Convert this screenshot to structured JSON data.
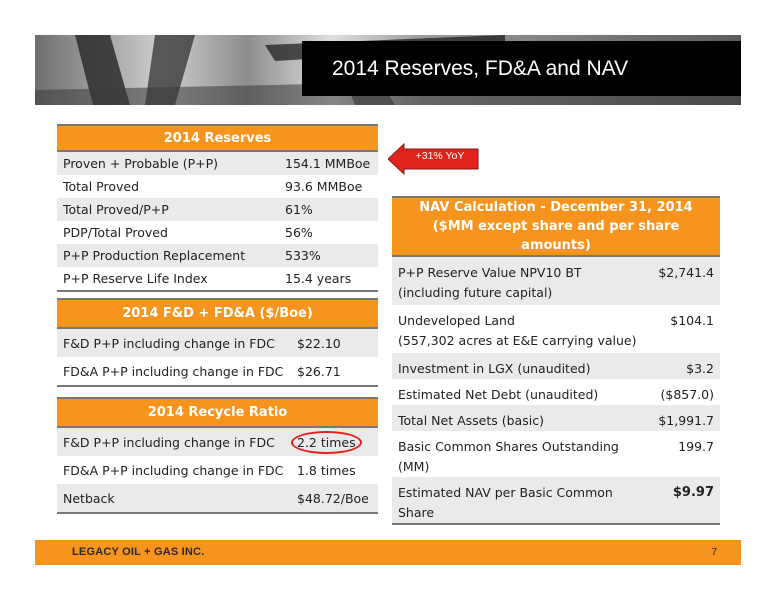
{
  "title": "2014 Reserves, FD&A and NAV",
  "reserves": {
    "header": "2014 Reserves",
    "rows": [
      {
        "label": "Proven + Probable (P+P)",
        "value": "154.1 MMBoe"
      },
      {
        "label": "Total Proved",
        "value": "93.6 MMBoe"
      },
      {
        "label": "Total Proved/P+P",
        "value": "61%"
      },
      {
        "label": "PDP/Total Proved",
        "value": "56%"
      },
      {
        "label": "P+P Production Replacement",
        "value": "533%"
      },
      {
        "label": "P+P Reserve Life Index",
        "value": "15.4 years"
      }
    ]
  },
  "callout": {
    "text": "+31% YoY",
    "color": "#e0231c"
  },
  "fda": {
    "header": "2014 F&D + FD&A ($/Boe)",
    "rows": [
      {
        "label": "F&D P+P including change in FDC",
        "value": "$22.10"
      },
      {
        "label": "FD&A P+P including change in FDC",
        "value": "$26.71"
      }
    ]
  },
  "recycle": {
    "header": "2014 Recycle Ratio",
    "rows": [
      {
        "label": "F&D P+P including change in FDC",
        "value": "2.2 times"
      },
      {
        "label": "FD&A P+P including change in FDC",
        "value": "1.8 times"
      },
      {
        "label": "Netback",
        "value": "$48.72/Boe"
      }
    ]
  },
  "nav": {
    "header_line1": "NAV Calculation  - December 31, 2014",
    "header_line2": "($MM except share and per share amounts)",
    "rows": [
      {
        "label_line1": "P+P Reserve Value NPV10 BT",
        "label_line2": "(including future capital)",
        "value": "$2,741.4"
      },
      {
        "label_line1": "Undeveloped Land",
        "label_line2": "(557,302 acres at E&E carrying value)",
        "value": "$104.1"
      },
      {
        "label_line1": "Investment in LGX (unaudited)",
        "value": "$3.2"
      },
      {
        "label_line1": "Estimated Net Debt (unaudited)",
        "value": "($857.0)"
      },
      {
        "label_line1": "Total Net Assets (basic)",
        "value": "$1,991.7"
      },
      {
        "label_line1": "Basic Common Shares Outstanding",
        "label_line2": "(MM)",
        "value": "199.7"
      },
      {
        "label_line1": "Estimated NAV per Basic Common",
        "label_line2": "Share",
        "value": "$9.97"
      }
    ]
  },
  "footer": {
    "logo": "LEGACY OIL + GAS INC.",
    "page": "7"
  },
  "colors": {
    "accent": "#f7941d",
    "stripe": "#eaeaea",
    "title_bg": "#000000"
  }
}
